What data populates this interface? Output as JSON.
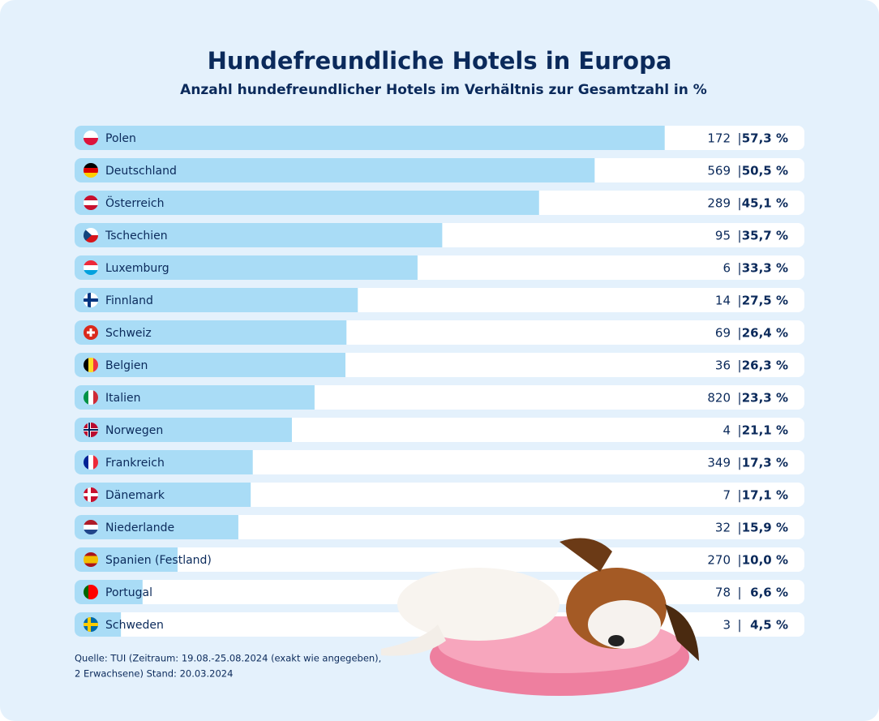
{
  "chart_data": {
    "type": "hbar",
    "title": "Hundefreundliche Hotels in Europa",
    "subtitle": "Anzahl hundefreundlicher Hotels im Verhältnis zur Gesamtzahl in %",
    "categories": [
      "Polen",
      "Deutschland",
      "Österreich",
      "Tschechien",
      "Luxemburg",
      "Finnland",
      "Schweiz",
      "Belgien",
      "Italien",
      "Norwegen",
      "Frankreich",
      "Dänemark",
      "Niederlande",
      "Spanien (Festland)",
      "Portugal",
      "Schweden"
    ],
    "values": [
      57.3,
      50.5,
      45.1,
      35.7,
      33.3,
      27.5,
      26.4,
      26.3,
      23.3,
      21.1,
      17.3,
      17.1,
      15.9,
      10.0,
      6.6,
      4.5
    ],
    "value_labels": [
      "57,3 %",
      "50,5 %",
      "45,1 %",
      "35,7 %",
      "33,3 %",
      "27,5 %",
      "26,4 %",
      "26,3 %",
      "23,3 %",
      "21,1 %",
      "17,3 %",
      "17,1 %",
      "15,9 %",
      "10,0 %",
      "6,6 %",
      "4,5 %"
    ],
    "counts": [
      172,
      569,
      289,
      95,
      6,
      14,
      69,
      36,
      820,
      4,
      349,
      7,
      32,
      270,
      78,
      3
    ],
    "separator": "|",
    "color": "#a9dcf6",
    "source": [
      "Quelle: TUI (Zeitraum: 19.08.-25.08.2024 (exakt wie angegeben),",
      "2 Erwachsene) Stand: 20.03.2024"
    ]
  }
}
